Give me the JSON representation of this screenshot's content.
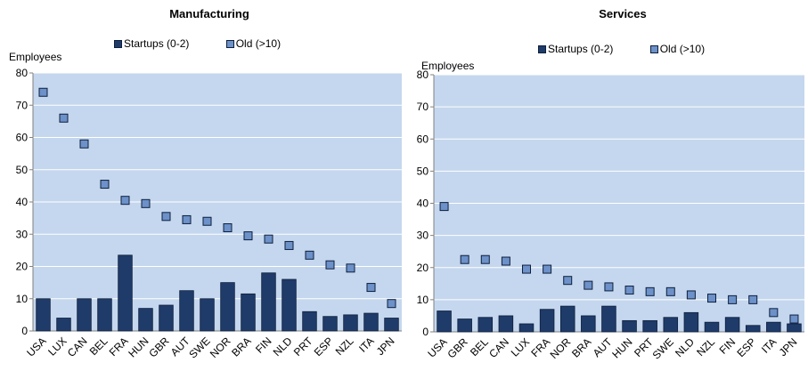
{
  "colors": {
    "plot_bg": "#c5d7ee",
    "startups": "#1f3b69",
    "old": "#6d91c9",
    "grid": "#ffffff",
    "axis": "#808080"
  },
  "chart_data": [
    {
      "type": "bar",
      "title": "Manufacturing",
      "ylabel": "Employees",
      "xlabel": "",
      "ylim": [
        0,
        80
      ],
      "yticks": [
        0,
        10,
        20,
        30,
        40,
        50,
        60,
        70,
        80
      ],
      "grid": true,
      "legend_position": "top",
      "categories": [
        "USA",
        "LUX",
        "CAN",
        "BEL",
        "FRA",
        "HUN",
        "GBR",
        "AUT",
        "SWE",
        "NOR",
        "BRA",
        "FIN",
        "NLD",
        "PRT",
        "ESP",
        "NZL",
        "ITA",
        "JPN"
      ],
      "series": [
        {
          "name": "Startups (0-2)",
          "mark": "bar",
          "values": [
            10,
            4,
            10,
            10,
            23.5,
            7,
            8,
            12.5,
            10,
            15,
            11.5,
            18,
            16,
            6,
            4.5,
            5,
            5.5,
            4
          ]
        },
        {
          "name": "Old (>10)",
          "mark": "square",
          "values": [
            74,
            66,
            58,
            45.5,
            40.5,
            39.5,
            35.5,
            34.5,
            34,
            32,
            29.5,
            28.5,
            26.5,
            23.5,
            20.5,
            19.5,
            13.5,
            8.5
          ]
        }
      ]
    },
    {
      "type": "bar",
      "title": "Services",
      "ylabel": "Employees",
      "xlabel": "",
      "ylim": [
        0,
        80
      ],
      "yticks": [
        0,
        10,
        20,
        30,
        40,
        50,
        60,
        70,
        80
      ],
      "grid": true,
      "legend_position": "top",
      "categories": [
        "USA",
        "GBR",
        "BEL",
        "CAN",
        "LUX",
        "FRA",
        "NOR",
        "BRA",
        "AUT",
        "HUN",
        "PRT",
        "SWE",
        "NLD",
        "NZL",
        "FIN",
        "ESP",
        "ITA",
        "JPN"
      ],
      "series": [
        {
          "name": "Startups (0-2)",
          "mark": "bar",
          "values": [
            6.5,
            4,
            4.5,
            5,
            2.5,
            7,
            8,
            5,
            8,
            3.5,
            3.5,
            4.5,
            6,
            3,
            4.5,
            2,
            3,
            2.5
          ]
        },
        {
          "name": "Old (>10)",
          "mark": "square",
          "values": [
            39,
            22.5,
            22.5,
            22,
            19.5,
            19.5,
            16,
            14.5,
            14,
            13,
            12.5,
            12.5,
            11.5,
            10.5,
            10,
            10,
            6,
            4
          ]
        }
      ]
    }
  ]
}
